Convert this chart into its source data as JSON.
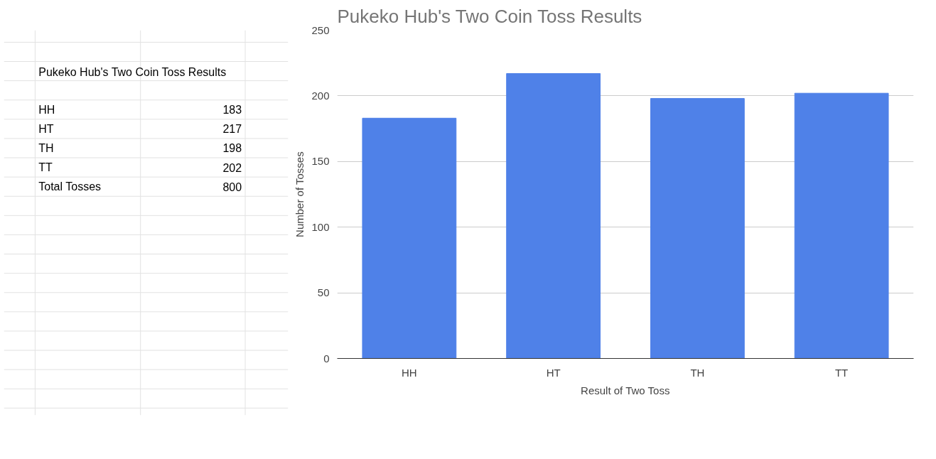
{
  "chart_data": {
    "type": "bar",
    "title": "Pukeko Hub's Two Coin Toss Results",
    "xlabel": "Result of Two Toss",
    "ylabel": "Number of Tosses",
    "categories": [
      "HH",
      "HT",
      "TH",
      "TT"
    ],
    "values": [
      183,
      217,
      198,
      202
    ],
    "color": "#4f81e8",
    "ylim": [
      0,
      250
    ],
    "yticks": [
      0,
      50,
      100,
      150,
      200,
      250
    ],
    "grid": "y",
    "annotations": [
      "Pukeko Hub's Two Coin Toss Results",
      "HH",
      "183",
      "HT",
      "217",
      "TH",
      "198",
      "TT",
      "202",
      "Total Tosses",
      "800"
    ]
  }
}
